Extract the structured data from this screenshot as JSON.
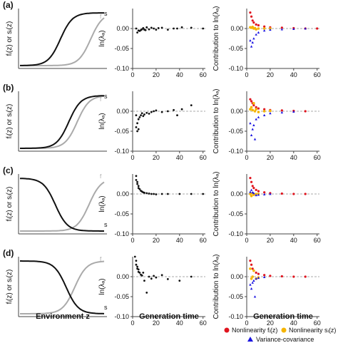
{
  "figure": {
    "rows": [
      {
        "label": "(a)",
        "col1_ylabel": "fᵢ(z) or sᵢ(z)",
        "col1_curve_label": "s",
        "left": {
          "f_shape": "increasing",
          "f_mid": 0.48,
          "s_shape": "increasing",
          "s_mid": 0.84
        },
        "mid": [
          [
            3,
            0.0
          ],
          [
            4,
            -0.01
          ],
          [
            5,
            -0.005
          ],
          [
            6,
            -0.006
          ],
          [
            7,
            -0.004
          ],
          [
            8,
            -0.002
          ],
          [
            9,
            0.001
          ],
          [
            10,
            -0.003
          ],
          [
            11,
            -0.004
          ],
          [
            12,
            0.003
          ],
          [
            14,
            -0.002
          ],
          [
            16,
            0.002
          ],
          [
            18,
            0.0
          ],
          [
            20,
            -0.003
          ],
          [
            22,
            0.001
          ],
          [
            25,
            0.002
          ],
          [
            30,
            -0.003
          ],
          [
            35,
            0.0
          ],
          [
            38,
            0.0
          ],
          [
            42,
            0.003
          ],
          [
            50,
            0.002
          ],
          [
            60,
            0.0
          ]
        ],
        "right_red": [
          [
            3,
            0.04
          ],
          [
            4,
            0.03
          ],
          [
            5,
            0.02
          ],
          [
            6,
            0.015
          ],
          [
            8,
            0.01
          ],
          [
            10,
            0.008
          ],
          [
            15,
            0.005
          ],
          [
            20,
            0.003
          ],
          [
            30,
            0.002
          ],
          [
            40,
            0.001
          ],
          [
            50,
            0.0
          ],
          [
            60,
            0.0
          ]
        ],
        "right_yellow": [
          [
            3,
            0.003
          ],
          [
            4,
            0.002
          ],
          [
            5,
            0.004
          ],
          [
            6,
            0.0
          ],
          [
            7,
            0.001
          ],
          [
            8,
            -0.002
          ],
          [
            10,
            0.0
          ],
          [
            15,
            0.0
          ],
          [
            20,
            0.0
          ]
        ],
        "right_blue": [
          [
            3,
            -0.03
          ],
          [
            4,
            -0.045
          ],
          [
            5,
            -0.035
          ],
          [
            6,
            -0.025
          ],
          [
            8,
            -0.015
          ],
          [
            10,
            -0.01
          ],
          [
            15,
            -0.005
          ],
          [
            20,
            -0.003
          ],
          [
            30,
            -0.002
          ],
          [
            40,
            -0.001
          ],
          [
            50,
            0.0
          ]
        ]
      },
      {
        "label": "(b)",
        "col1_ylabel": "fᵢ(z) or sᵢ(z)",
        "col1_curve_label": "s",
        "left": {
          "f_shape": "increasing",
          "f_mid": 0.58,
          "s_shape": "increasing",
          "s_mid": 0.68
        },
        "mid": [
          [
            3,
            -0.01
          ],
          [
            3,
            -0.04
          ],
          [
            4,
            -0.05
          ],
          [
            4,
            -0.03
          ],
          [
            5,
            -0.02
          ],
          [
            5,
            -0.045
          ],
          [
            6,
            -0.015
          ],
          [
            7,
            -0.01
          ],
          [
            8,
            -0.005
          ],
          [
            9,
            -0.012
          ],
          [
            10,
            -0.008
          ],
          [
            12,
            -0.004
          ],
          [
            14,
            -0.006
          ],
          [
            16,
            -0.002
          ],
          [
            18,
            0.0
          ],
          [
            20,
            0.002
          ],
          [
            25,
            -0.002
          ],
          [
            30,
            0.0
          ],
          [
            35,
            0.003
          ],
          [
            38,
            -0.01
          ],
          [
            42,
            0.005
          ],
          [
            50,
            0.015
          ]
        ],
        "right_red": [
          [
            3,
            0.03
          ],
          [
            4,
            0.025
          ],
          [
            5,
            0.02
          ],
          [
            6,
            0.015
          ],
          [
            8,
            0.01
          ],
          [
            10,
            0.007
          ],
          [
            15,
            0.005
          ],
          [
            20,
            0.003
          ],
          [
            30,
            0.002
          ],
          [
            40,
            0.001
          ],
          [
            50,
            0.0
          ]
        ],
        "right_yellow": [
          [
            3,
            0.005
          ],
          [
            4,
            0.01
          ],
          [
            5,
            0.003
          ],
          [
            6,
            0.02
          ],
          [
            7,
            0.0
          ],
          [
            8,
            0.005
          ],
          [
            10,
            -0.002
          ],
          [
            15,
            0.0
          ],
          [
            20,
            0.001
          ]
        ],
        "right_blue": [
          [
            3,
            -0.03
          ],
          [
            4,
            -0.06
          ],
          [
            5,
            -0.045
          ],
          [
            6,
            -0.035
          ],
          [
            7,
            -0.07
          ],
          [
            8,
            -0.02
          ],
          [
            10,
            -0.015
          ],
          [
            15,
            -0.01
          ],
          [
            20,
            -0.005
          ],
          [
            30,
            -0.003
          ],
          [
            40,
            -0.001
          ]
        ]
      },
      {
        "label": "(c)",
        "col1_ylabel": "fᵢ(z) or sᵢ(z)",
        "col1_curve_label": "s",
        "left": {
          "f_shape": "decreasing",
          "f_mid": 0.42,
          "s_shape": "increasing",
          "s_mid": 0.82
        },
        "mid": [
          [
            3,
            0.045
          ],
          [
            3,
            0.035
          ],
          [
            4,
            0.03
          ],
          [
            4,
            0.025
          ],
          [
            5,
            0.02
          ],
          [
            5,
            0.015
          ],
          [
            6,
            0.012
          ],
          [
            7,
            0.008
          ],
          [
            8,
            0.006
          ],
          [
            9,
            0.004
          ],
          [
            10,
            0.003
          ],
          [
            12,
            0.002
          ],
          [
            14,
            0.001
          ],
          [
            16,
            0.0
          ],
          [
            18,
            0.0
          ],
          [
            20,
            -0.001
          ],
          [
            25,
            0.0
          ],
          [
            30,
            0.0
          ],
          [
            40,
            0.0
          ],
          [
            50,
            0.0
          ],
          [
            60,
            0.0
          ]
        ],
        "right_red": [
          [
            3,
            0.04
          ],
          [
            4,
            0.03
          ],
          [
            5,
            0.02
          ],
          [
            6,
            0.015
          ],
          [
            8,
            0.01
          ],
          [
            10,
            0.007
          ],
          [
            15,
            0.004
          ],
          [
            20,
            0.002
          ],
          [
            30,
            0.001
          ],
          [
            40,
            0.0
          ],
          [
            50,
            0.0
          ]
        ],
        "right_yellow": [
          [
            3,
            0.0
          ],
          [
            4,
            -0.005
          ],
          [
            5,
            0.002
          ],
          [
            6,
            -0.002
          ],
          [
            8,
            0.0
          ],
          [
            10,
            0.0
          ]
        ],
        "right_blue": [
          [
            3,
            0.005
          ],
          [
            4,
            0.01
          ],
          [
            5,
            0.004
          ],
          [
            6,
            0.002
          ],
          [
            8,
            -0.003
          ],
          [
            10,
            -0.002
          ],
          [
            15,
            -0.001
          ],
          [
            20,
            0.0
          ]
        ]
      },
      {
        "label": "(d)",
        "col1_ylabel": "fᵢ(z) or sᵢ(z)",
        "col1_curve_label": "s",
        "left": {
          "f_shape": "decreasing",
          "f_mid": 0.55,
          "s_shape": "increasing",
          "s_mid": 0.65
        },
        "mid": [
          [
            2,
            0.05
          ],
          [
            3,
            0.04
          ],
          [
            3,
            0.03
          ],
          [
            4,
            0.025
          ],
          [
            4,
            0.02
          ],
          [
            5,
            0.018
          ],
          [
            5,
            0.012
          ],
          [
            6,
            0.01
          ],
          [
            7,
            0.005
          ],
          [
            8,
            0.003
          ],
          [
            9,
            0.01
          ],
          [
            10,
            -0.01
          ],
          [
            12,
            -0.04
          ],
          [
            14,
            0.0
          ],
          [
            16,
            -0.005
          ],
          [
            18,
            0.002
          ],
          [
            20,
            -0.002
          ],
          [
            25,
            0.004
          ],
          [
            30,
            -0.006
          ],
          [
            40,
            -0.01
          ],
          [
            50,
            0.0
          ]
        ],
        "right_red": [
          [
            3,
            0.04
          ],
          [
            4,
            0.03
          ],
          [
            5,
            0.02
          ],
          [
            6,
            0.015
          ],
          [
            8,
            0.01
          ],
          [
            10,
            0.007
          ],
          [
            15,
            0.004
          ],
          [
            20,
            0.002
          ],
          [
            30,
            0.001
          ],
          [
            40,
            0.0
          ],
          [
            50,
            0.0
          ]
        ],
        "right_yellow": [
          [
            3,
            0.02
          ],
          [
            4,
            -0.005
          ],
          [
            5,
            0.0
          ],
          [
            6,
            0.015
          ],
          [
            8,
            -0.005
          ],
          [
            10,
            -0.002
          ]
        ],
        "right_blue": [
          [
            3,
            -0.02
          ],
          [
            4,
            -0.03
          ],
          [
            5,
            -0.015
          ],
          [
            6,
            -0.01
          ],
          [
            7,
            -0.05
          ],
          [
            8,
            -0.005
          ],
          [
            10,
            -0.003
          ],
          [
            15,
            -0.001
          ]
        ]
      }
    ],
    "col1_xlabel": "Environment z",
    "col2_xlabel": "Generation time",
    "col3_xlabel": "Generation time",
    "col2_ylabel": "ln(λₐ)",
    "col3_ylabel": "Contribution to ln(λₐ)",
    "f_label": "f",
    "legend": {
      "red_label": "Nonlinearity fᵢ(z)",
      "yellow_label": "Nonlinearity sᵢ(z)",
      "blue_label": "Variance-covariance"
    }
  },
  "colors": {
    "red": "#e0141e",
    "yellow": "#f5b400",
    "blue": "#1a14e0",
    "curve_f": "#111111",
    "curve_s": "#aaaaaa",
    "dots": "#111111"
  },
  "chart_data": {
    "type": "scatter",
    "x_ticks": [
      0,
      20,
      40,
      60
    ],
    "y_ticks": [
      0.0,
      -0.05,
      -0.1
    ],
    "xlim": [
      0,
      62
    ],
    "ylim": [
      -0.1,
      0.05
    ],
    "series": [
      {
        "name": "Nonlinearity fᵢ(z)",
        "color": "red"
      },
      {
        "name": "Nonlinearity sᵢ(z)",
        "color": "yellow"
      },
      {
        "name": "Variance-covariance",
        "color": "blue"
      }
    ]
  }
}
